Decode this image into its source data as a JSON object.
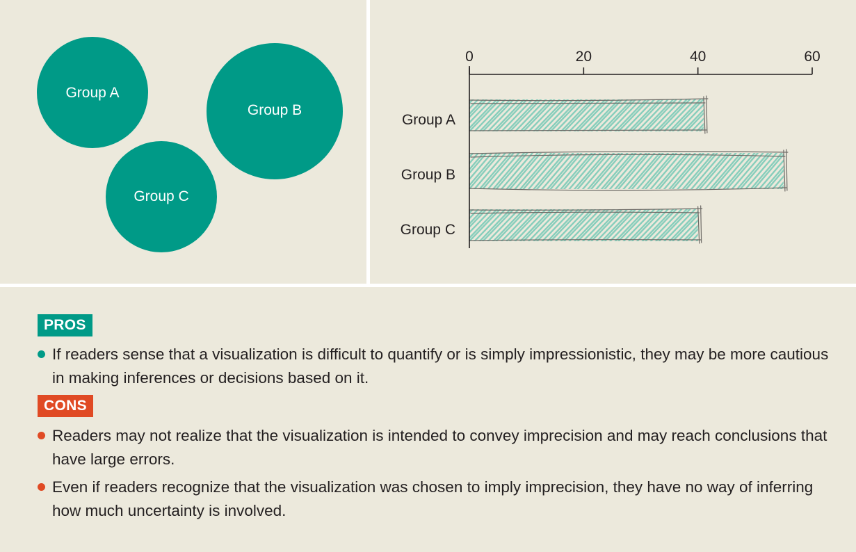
{
  "bubble_chart": {
    "bubbles": [
      {
        "label": "Group A"
      },
      {
        "label": "Group B"
      },
      {
        "label": "Group C"
      }
    ],
    "fill_color": "#009a87",
    "label_color": "#ffffff"
  },
  "chart_data": {
    "type": "bar",
    "orientation": "horizontal",
    "style": "sketchy hatched",
    "categories": [
      "Group A",
      "Group B",
      "Group C"
    ],
    "values": [
      41,
      55,
      40
    ],
    "xlim": [
      0,
      60
    ],
    "xticks": [
      0,
      20,
      40,
      60
    ],
    "axis_position": "top",
    "grid": false,
    "legend": "none",
    "title": "",
    "xlabel": "",
    "ylabel": "",
    "hatch_color": "#7dcbb8",
    "outline_color": "#6d6a66"
  },
  "pros": {
    "label": "PROS",
    "color": "#009a87",
    "items": [
      "If readers sense that a visualization is difficult to quantify or is simply impressionistic, they may be more cautious in making inferences or decisions based on it."
    ]
  },
  "cons": {
    "label": "CONS",
    "color": "#e04a24",
    "items": [
      "Readers may not realize that the visualization is intended to convey imprecision and may reach conclusions that have large errors.",
      "Even if readers recognize that the visualization was chosen to imply imprecision, they have no way of inferring how much uncertainty is involved."
    ]
  }
}
